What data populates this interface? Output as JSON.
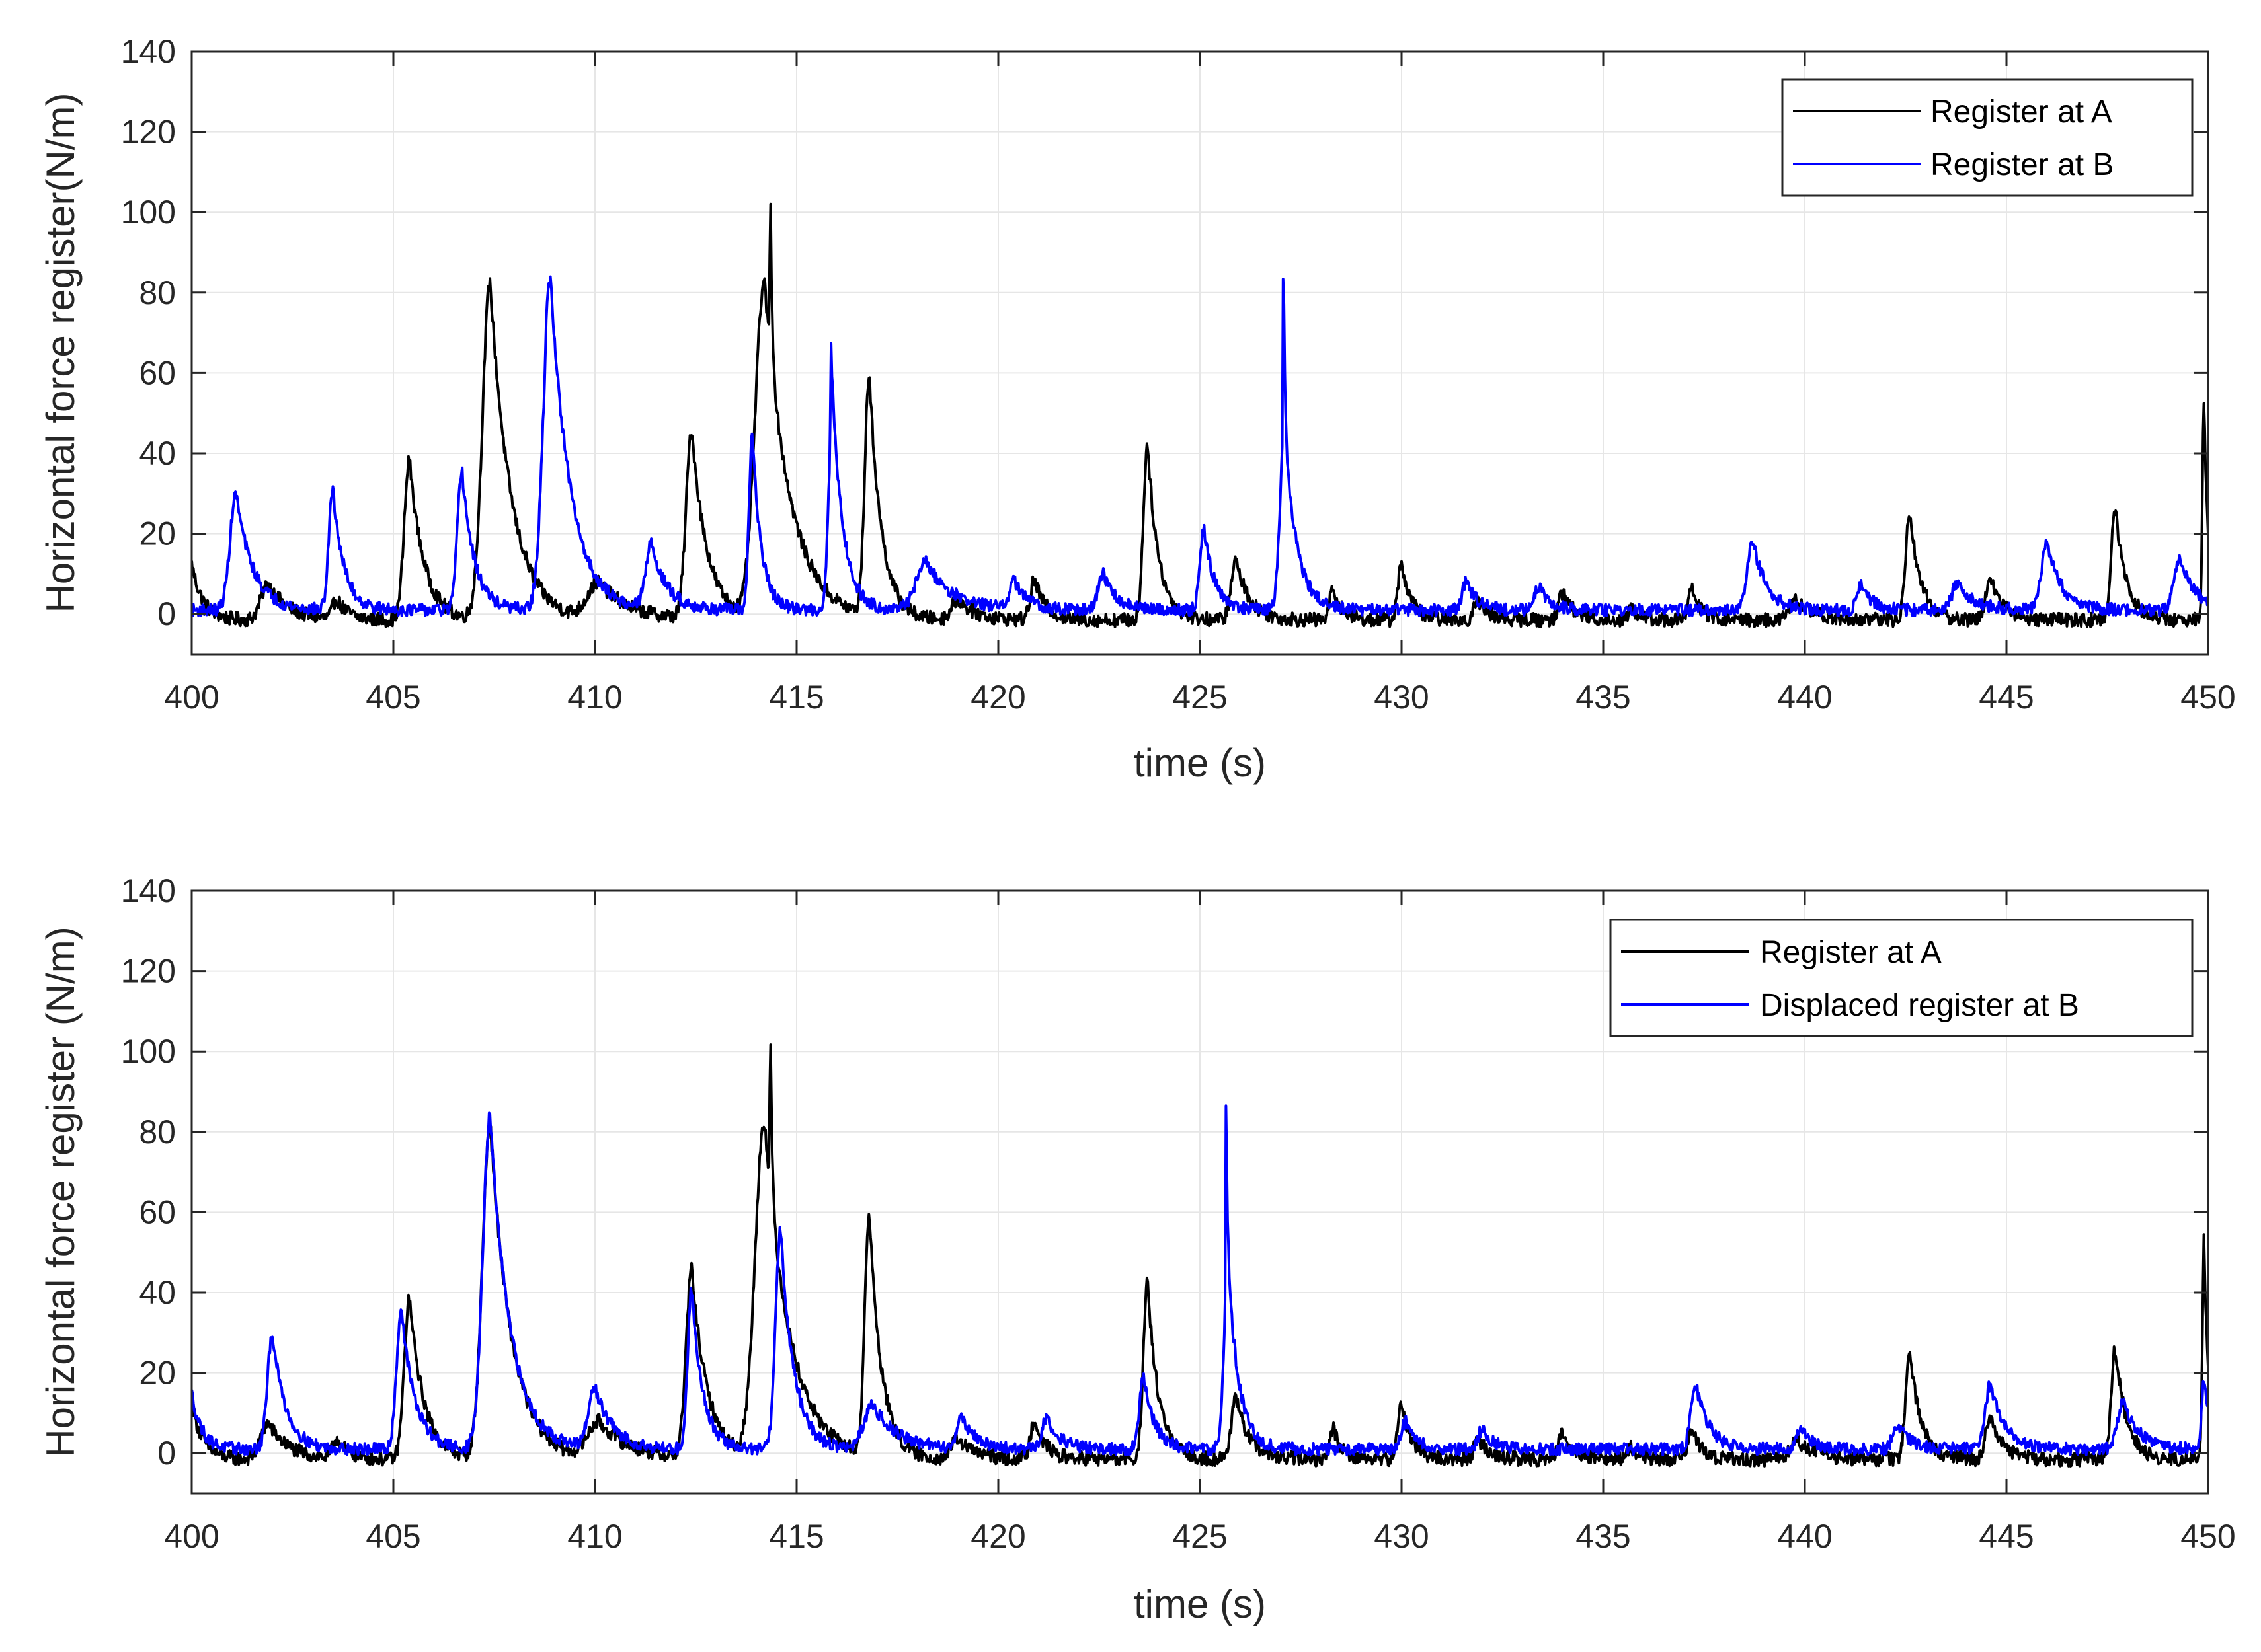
{
  "chart_data": [
    {
      "type": "line",
      "xlabel": "time (s)",
      "ylabel": "Horizontal force register(N/m)",
      "xlim": [
        400,
        450
      ],
      "ylim": [
        -10,
        140
      ],
      "xticks": [
        400,
        405,
        410,
        415,
        420,
        425,
        430,
        435,
        440,
        445,
        450
      ],
      "yticks": [
        0,
        20,
        40,
        60,
        80,
        100,
        120,
        140
      ],
      "legend_position": "top-right",
      "series": [
        {
          "name": "Register at A",
          "color": "#000000",
          "baseline": -1.5,
          "noise": 3.5,
          "peaks": [
            {
              "t": 400.0,
              "h": 14,
              "d": 0.5
            },
            {
              "t": 401.9,
              "h": 9,
              "d": 0.9
            },
            {
              "t": 403.6,
              "h": 5,
              "d": 0.5
            },
            {
              "t": 405.4,
              "h": 40,
              "d": 0.65
            },
            {
              "t": 407.4,
              "h": 84,
              "d": 0.95
            },
            {
              "t": 410.1,
              "h": 9,
              "d": 1.4
            },
            {
              "t": 412.4,
              "h": 47,
              "d": 0.7
            },
            {
              "t": 414.2,
              "h": 84,
              "d": 1.15
            },
            {
              "t": 414.35,
              "h": 40,
              "d": 0.08
            },
            {
              "t": 416.8,
              "h": 60,
              "d": 0.55
            },
            {
              "t": 419.0,
              "h": 5,
              "d": 0.8
            },
            {
              "t": 420.9,
              "h": 10,
              "d": 0.5
            },
            {
              "t": 423.7,
              "h": 44,
              "d": 0.5
            },
            {
              "t": 425.9,
              "h": 15,
              "d": 0.6
            },
            {
              "t": 428.3,
              "h": 8,
              "d": 0.4
            },
            {
              "t": 430.0,
              "h": 14,
              "d": 0.45
            },
            {
              "t": 431.9,
              "h": 5,
              "d": 0.5
            },
            {
              "t": 434.0,
              "h": 7,
              "d": 0.5
            },
            {
              "t": 435.7,
              "h": 3,
              "d": 0.4
            },
            {
              "t": 437.2,
              "h": 8,
              "d": 0.4
            },
            {
              "t": 439.8,
              "h": 5,
              "d": 0.8
            },
            {
              "t": 442.6,
              "h": 27,
              "d": 0.5
            },
            {
              "t": 444.6,
              "h": 11,
              "d": 0.55
            },
            {
              "t": 447.7,
              "h": 28,
              "d": 0.5
            },
            {
              "t": 449.9,
              "h": 55,
              "d": 0.2
            }
          ]
        },
        {
          "name": "Register at B",
          "color": "#0000ff",
          "baseline": 1.0,
          "noise": 3.0,
          "peaks": [
            {
              "t": 401.1,
              "h": 29,
              "d": 0.75
            },
            {
              "t": 403.5,
              "h": 30,
              "d": 0.5
            },
            {
              "t": 406.7,
              "h": 35,
              "d": 0.55
            },
            {
              "t": 408.9,
              "h": 82,
              "d": 0.9
            },
            {
              "t": 408.8,
              "h": 6,
              "d": 0.05
            },
            {
              "t": 411.4,
              "h": 16,
              "d": 0.7
            },
            {
              "t": 413.9,
              "h": 44,
              "d": 0.4
            },
            {
              "t": 415.9,
              "h": 52,
              "d": 0.5
            },
            {
              "t": 415.85,
              "h": 22,
              "d": 0.05
            },
            {
              "t": 418.2,
              "h": 12,
              "d": 1.2
            },
            {
              "t": 420.4,
              "h": 7,
              "d": 0.6
            },
            {
              "t": 422.6,
              "h": 9,
              "d": 0.6
            },
            {
              "t": 425.1,
              "h": 20,
              "d": 0.5
            },
            {
              "t": 427.1,
              "h": 45,
              "d": 0.55
            },
            {
              "t": 427.07,
              "h": 53,
              "d": 0.05
            },
            {
              "t": 431.6,
              "h": 7,
              "d": 0.5
            },
            {
              "t": 433.4,
              "h": 6,
              "d": 0.5
            },
            {
              "t": 438.7,
              "h": 18,
              "d": 0.6
            },
            {
              "t": 441.4,
              "h": 6,
              "d": 0.5
            },
            {
              "t": 443.8,
              "h": 7,
              "d": 0.7
            },
            {
              "t": 446.0,
              "h": 17,
              "d": 0.65
            },
            {
              "t": 449.3,
              "h": 13,
              "d": 0.7
            }
          ]
        }
      ]
    },
    {
      "type": "line",
      "xlabel": "time (s)",
      "ylabel": "Horizontal force register (N/m)",
      "xlim": [
        400,
        450
      ],
      "ylim": [
        -10,
        140
      ],
      "xticks": [
        400,
        405,
        410,
        415,
        420,
        425,
        430,
        435,
        440,
        445,
        450
      ],
      "yticks": [
        0,
        20,
        40,
        60,
        80,
        100,
        120,
        140
      ],
      "legend_position": "top-right",
      "series": [
        {
          "name": "Register at A",
          "color": "#000000",
          "baseline": -1.5,
          "noise": 3.5,
          "peaks": [
            {
              "t": 400.0,
              "h": 14,
              "d": 0.5
            },
            {
              "t": 401.9,
              "h": 9,
              "d": 0.9
            },
            {
              "t": 403.6,
              "h": 5,
              "d": 0.5
            },
            {
              "t": 405.4,
              "h": 40,
              "d": 0.65
            },
            {
              "t": 407.4,
              "h": 84,
              "d": 0.95
            },
            {
              "t": 410.1,
              "h": 9,
              "d": 1.4
            },
            {
              "t": 412.4,
              "h": 47,
              "d": 0.7
            },
            {
              "t": 414.2,
              "h": 84,
              "d": 1.15
            },
            {
              "t": 414.35,
              "h": 40,
              "d": 0.08
            },
            {
              "t": 416.8,
              "h": 60,
              "d": 0.55
            },
            {
              "t": 419.0,
              "h": 5,
              "d": 0.8
            },
            {
              "t": 420.9,
              "h": 10,
              "d": 0.5
            },
            {
              "t": 423.7,
              "h": 44,
              "d": 0.5
            },
            {
              "t": 425.9,
              "h": 15,
              "d": 0.6
            },
            {
              "t": 428.3,
              "h": 8,
              "d": 0.4
            },
            {
              "t": 430.0,
              "h": 14,
              "d": 0.45
            },
            {
              "t": 431.9,
              "h": 5,
              "d": 0.5
            },
            {
              "t": 434.0,
              "h": 7,
              "d": 0.5
            },
            {
              "t": 435.7,
              "h": 3,
              "d": 0.4
            },
            {
              "t": 437.2,
              "h": 8,
              "d": 0.4
            },
            {
              "t": 439.8,
              "h": 5,
              "d": 0.8
            },
            {
              "t": 442.6,
              "h": 27,
              "d": 0.5
            },
            {
              "t": 444.6,
              "h": 11,
              "d": 0.55
            },
            {
              "t": 447.7,
              "h": 28,
              "d": 0.5
            },
            {
              "t": 449.9,
              "h": 55,
              "d": 0.2
            }
          ]
        },
        {
          "name": "Displaced register at B",
          "color": "#0000ff",
          "baseline": 1.0,
          "noise": 3.0,
          "peaks": [
            {
              "t": 400.0,
              "h": 14,
              "d": 0.45
            },
            {
              "t": 402.0,
              "h": 29,
              "d": 0.6
            },
            {
              "t": 405.2,
              "h": 35,
              "d": 0.6
            },
            {
              "t": 407.4,
              "h": 83,
              "d": 0.9
            },
            {
              "t": 410.0,
              "h": 15,
              "d": 0.8
            },
            {
              "t": 412.4,
              "h": 40,
              "d": 0.5
            },
            {
              "t": 414.6,
              "h": 55,
              "d": 0.6
            },
            {
              "t": 416.9,
              "h": 11,
              "d": 1.1
            },
            {
              "t": 419.1,
              "h": 8,
              "d": 0.6
            },
            {
              "t": 421.2,
              "h": 8,
              "d": 0.6
            },
            {
              "t": 423.6,
              "h": 18,
              "d": 0.5
            },
            {
              "t": 425.7,
              "h": 45,
              "d": 0.5
            },
            {
              "t": 425.65,
              "h": 52,
              "d": 0.05
            },
            {
              "t": 430.1,
              "h": 7,
              "d": 0.5
            },
            {
              "t": 432.0,
              "h": 5,
              "d": 0.5
            },
            {
              "t": 437.3,
              "h": 16,
              "d": 0.6
            },
            {
              "t": 439.9,
              "h": 6,
              "d": 0.5
            },
            {
              "t": 442.3,
              "h": 6,
              "d": 0.6
            },
            {
              "t": 444.6,
              "h": 16,
              "d": 0.65
            },
            {
              "t": 447.9,
              "h": 12,
              "d": 0.7
            },
            {
              "t": 449.9,
              "h": 18,
              "d": 0.3
            }
          ]
        }
      ]
    }
  ]
}
